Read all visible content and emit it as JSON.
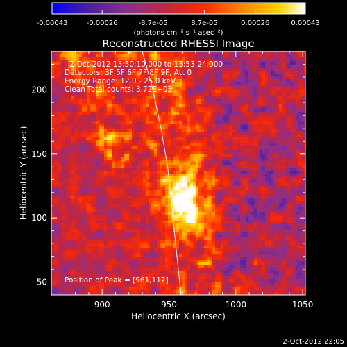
{
  "chart_data": {
    "type": "heatmap",
    "title": "Reconstructed RHESSI Image",
    "xlabel": "Heliocentric X (arcsec)",
    "ylabel": "Heliocentric Y (arcsec)",
    "xlim": [
      862,
      1052
    ],
    "ylim": [
      40,
      230
    ],
    "x_ticks": [
      900,
      950,
      1000,
      1050
    ],
    "y_ticks": [
      50,
      100,
      150,
      200
    ],
    "grid": false,
    "colorbar": {
      "label": "(photons cm⁻² s⁻¹ asec⁻²)",
      "tick_labels": [
        "-0.00043",
        "-0.00026",
        "-8.7e-05",
        "8.7e-05",
        "0.00026",
        "0.00043"
      ],
      "range": [
        -0.00043,
        0.00043
      ],
      "colormap": [
        "#0000ff",
        "#4b1ea0",
        "#8a2f8f",
        "#c5253a",
        "#ff2a00",
        "#ff8a00",
        "#ffd400",
        "#ffffff"
      ]
    },
    "peak_position": [
      961,
      112
    ],
    "limb_curve": [
      [
        930,
        230
      ],
      [
        938,
        200
      ],
      [
        944,
        170
      ],
      [
        949,
        140
      ],
      [
        952,
        110
      ],
      [
        955,
        80
      ],
      [
        958,
        50
      ],
      [
        959,
        40
      ]
    ],
    "annotations": {
      "time": "2-Oct-2012 13:50:10.000 to 13:53:24.000",
      "detectors": "Detectors: 3F 5F 6F 7F 8F 9F, Att 0",
      "energy": "Energy Range: 12.0 - 25.0 keV",
      "clean": "Clean    Total counts: 3.72E+03",
      "peak": "Position of Peak = [961,112]"
    },
    "footer_timestamp": "2-Oct-2012 22:05"
  }
}
